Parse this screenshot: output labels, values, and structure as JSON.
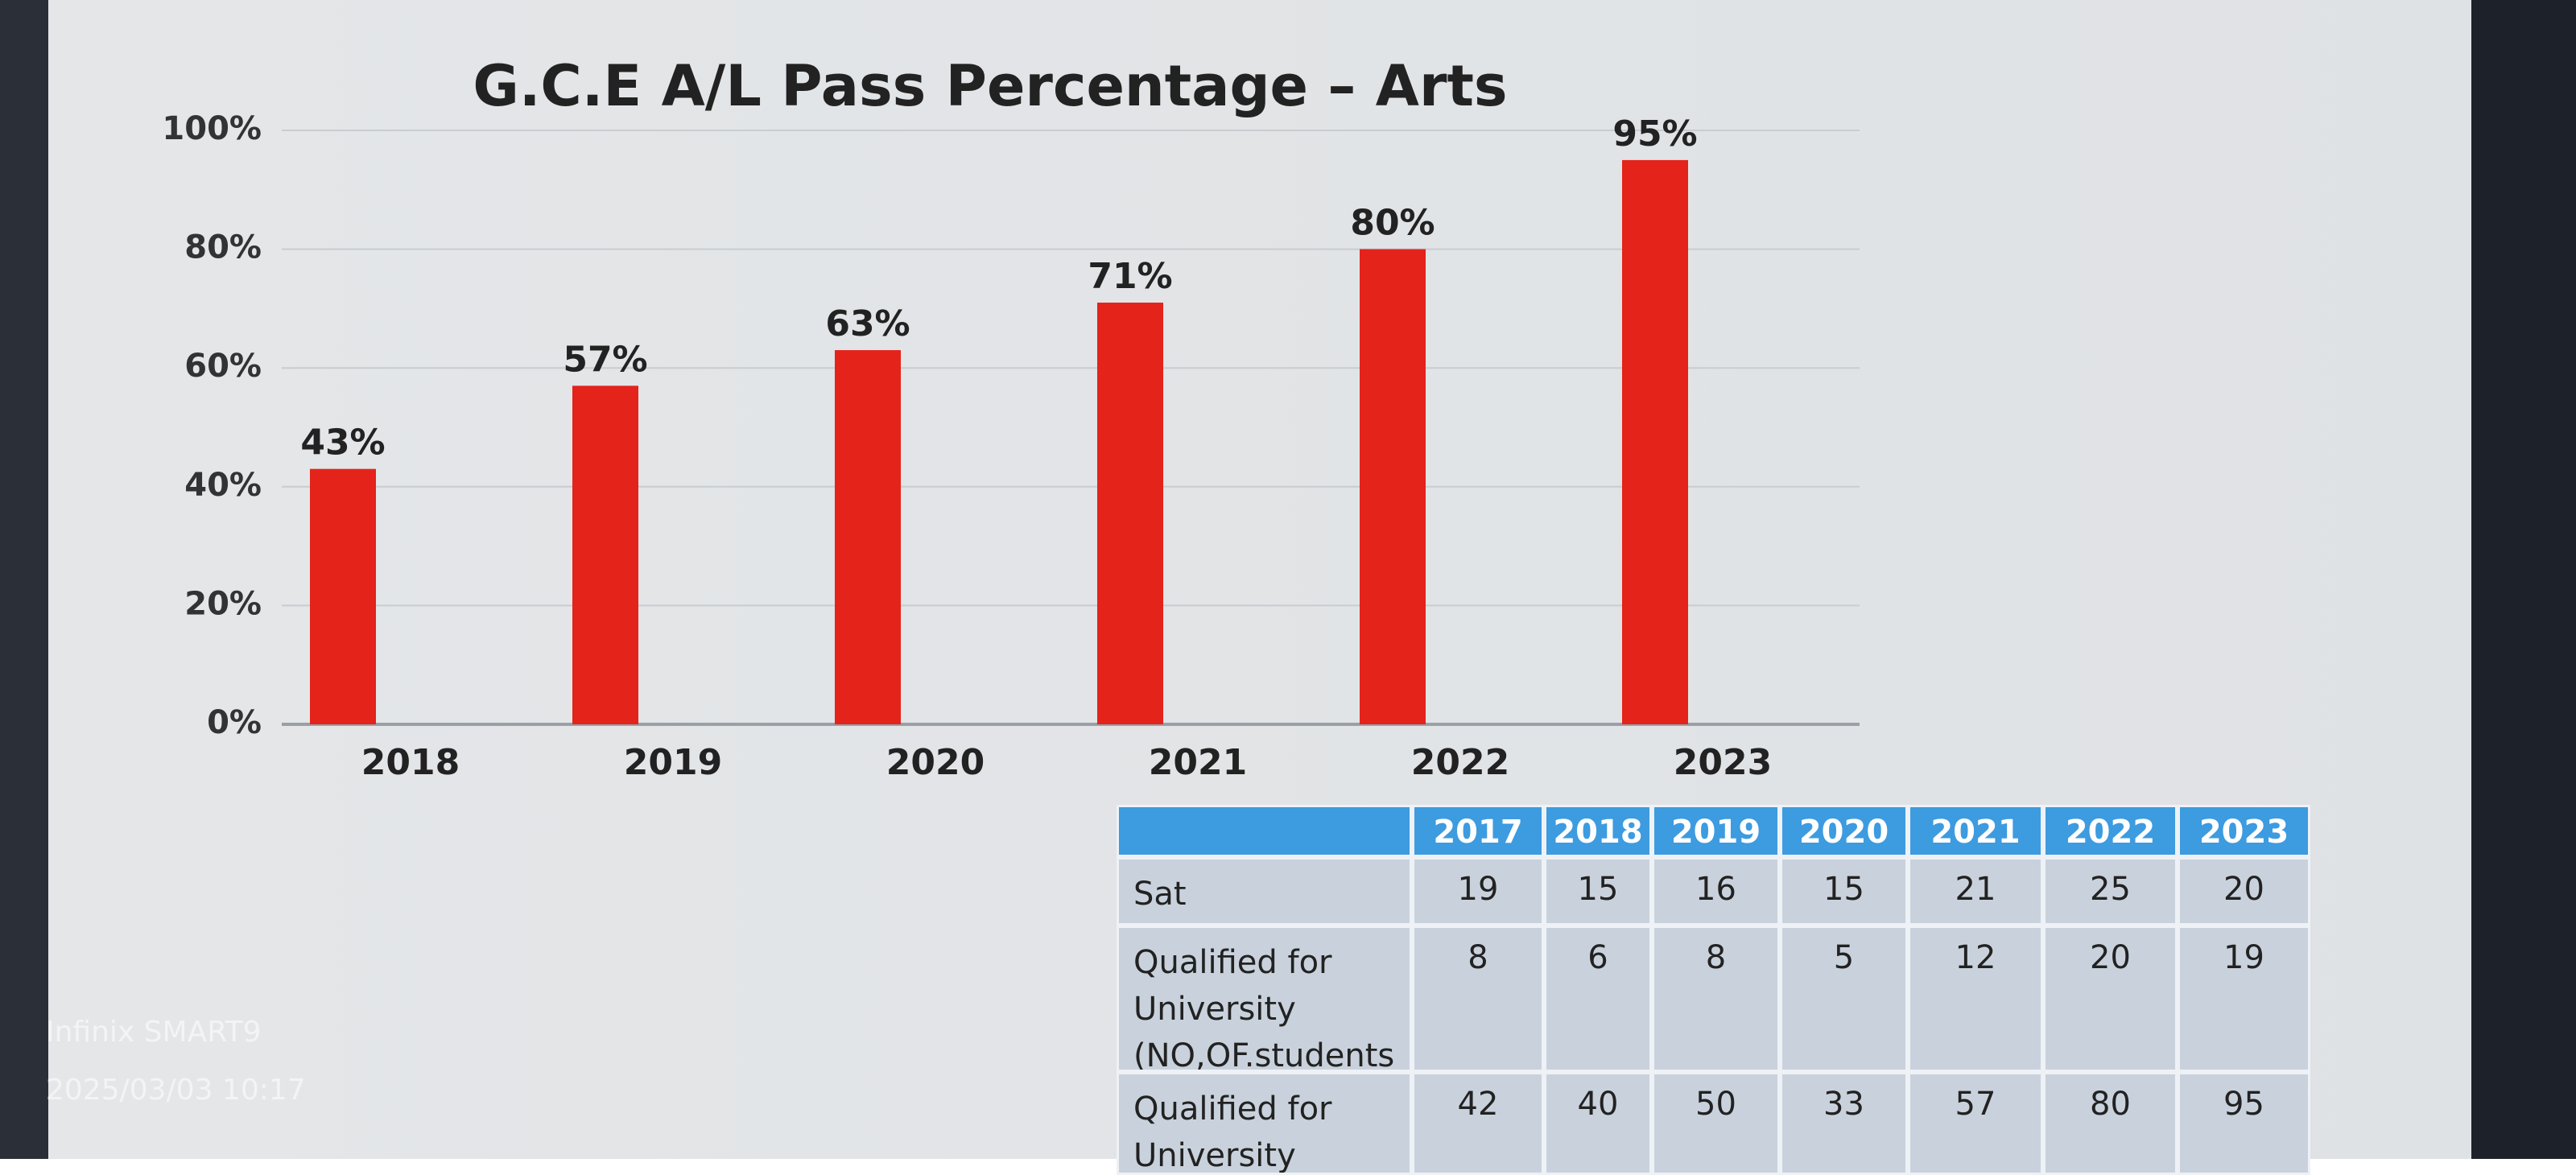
{
  "chart_data": {
    "type": "bar",
    "title": "G.C.E A/L Pass Percentage – Arts",
    "categories": [
      "2018",
      "2019",
      "2020",
      "2021",
      "2022",
      "2023"
    ],
    "values": [
      43,
      57,
      63,
      71,
      80,
      95
    ],
    "value_labels": [
      "43%",
      "57%",
      "63%",
      "71%",
      "80%",
      "95%"
    ],
    "color": "#e4231b",
    "ylim": [
      0,
      100
    ],
    "yticks": [
      {
        "value": 0,
        "label": "0%"
      },
      {
        "value": 20,
        "label": "20%"
      },
      {
        "value": 40,
        "label": "40%"
      },
      {
        "value": 60,
        "label": "60%"
      },
      {
        "value": 80,
        "label": "80%"
      },
      {
        "value": 100,
        "label": "100%"
      }
    ],
    "grid": true
  },
  "table": {
    "header": [
      "2017",
      "2018",
      "2019",
      "2020",
      "2021",
      "2022",
      "2023"
    ],
    "rows": [
      {
        "label": "Sat",
        "values": [
          19,
          15,
          16,
          15,
          21,
          25,
          20
        ]
      },
      {
        "label": "Qualified for University (NO,OF.students",
        "values": [
          8,
          6,
          8,
          5,
          12,
          20,
          19
        ]
      },
      {
        "label": "Qualified for University",
        "values": [
          42,
          40,
          50,
          33,
          57,
          80,
          95
        ]
      }
    ]
  },
  "watermark": {
    "brand": "Infinix SMART9",
    "timestamp": "2025/03/03 10:17"
  }
}
